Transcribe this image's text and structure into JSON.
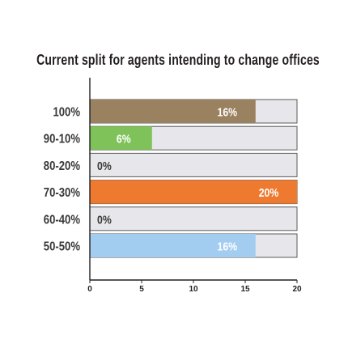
{
  "chart_data": {
    "type": "bar",
    "orientation": "horizontal",
    "title": "Current split for agents intending to change offices",
    "categories": [
      "100%",
      "90-10%",
      "80-20%",
      "70-30%",
      "60-40%",
      "50-50%"
    ],
    "values": [
      16,
      6,
      0,
      20,
      0,
      16
    ],
    "value_labels": [
      "16%",
      "6%",
      "0%",
      "20%",
      "0%",
      "16%"
    ],
    "bar_colors": [
      "#9a8160",
      "#80c25a",
      "#dfdfe4",
      "#ee7a2f",
      "#dfdfe4",
      "#a2cdf0"
    ],
    "track_color": "#e7e6ea",
    "xlim": [
      0,
      20
    ],
    "xticks": [
      0,
      5,
      10,
      15,
      20
    ],
    "xtick_labels": [
      "0",
      "5",
      "10",
      "15",
      "20"
    ],
    "grid": false,
    "legend": "none"
  }
}
